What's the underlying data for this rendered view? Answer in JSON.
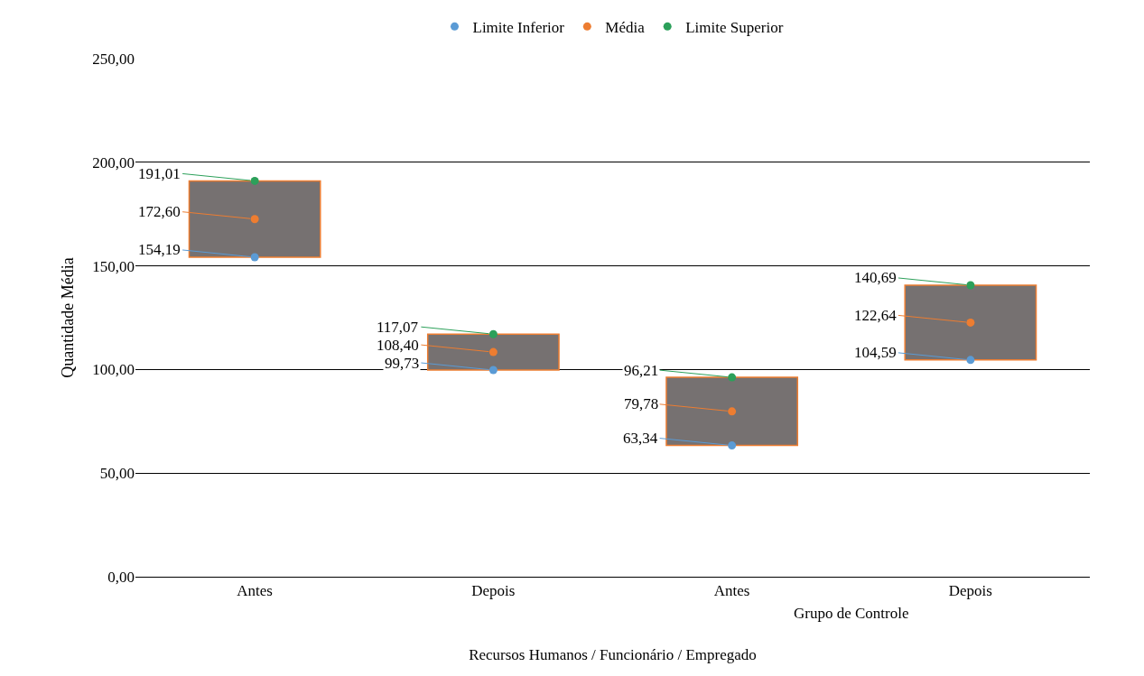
{
  "chart_data": {
    "type": "bar",
    "xlabel": "Recursos Humanos / Funcionário / Empregado",
    "ylabel": "Quantidade Média",
    "categories": [
      "Antes",
      "Depois",
      "Antes",
      "Depois"
    ],
    "annotations": [
      "Grupo de Controle"
    ],
    "ylim": [
      0,
      250
    ],
    "yticks": [
      {
        "value": 0,
        "label": "0,00"
      },
      {
        "value": 50,
        "label": "50,00"
      },
      {
        "value": 100,
        "label": "100,00"
      },
      {
        "value": 150,
        "label": "150,00"
      },
      {
        "value": 200,
        "label": "200,00"
      },
      {
        "value": 250,
        "label": "250,00"
      }
    ],
    "grid": "y",
    "legend": "top",
    "series": [
      {
        "color": "#767171",
        "base": [
          154.19,
          99.73,
          63.34,
          104.59
        ],
        "values": [
          36.82,
          17.34,
          32.87,
          36.1
        ]
      },
      {
        "type": "scatter",
        "name": "Limite Inferior",
        "color": "#5b9bd5",
        "marker": "circle",
        "values": [
          154.19,
          99.73,
          63.34,
          104.59
        ],
        "value_labels": [
          "154,19",
          "99,73",
          "63,34",
          "104,59"
        ]
      },
      {
        "type": "scatter",
        "name": "Média",
        "color": "#ed7d31",
        "marker": "circle",
        "values": [
          172.6,
          108.4,
          79.78,
          122.64
        ],
        "value_labels": [
          "172,60",
          "108,40",
          "79,78",
          "122,64"
        ]
      },
      {
        "type": "scatter",
        "name": "Limite Superior",
        "color": "#2ca05a",
        "marker": "circle",
        "values": [
          191.01,
          117.07,
          96.21,
          140.69
        ],
        "value_labels": [
          "191,01",
          "117,07",
          "96,21",
          "140,69"
        ]
      }
    ]
  }
}
